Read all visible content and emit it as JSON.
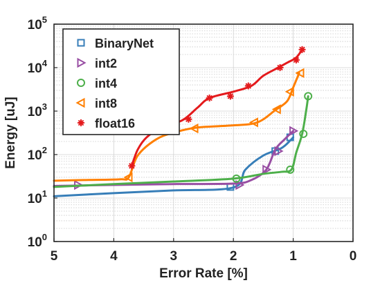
{
  "chart_data": {
    "type": "line",
    "title": "",
    "xlabel": "Error Rate [%]",
    "ylabel": "Energy [uJ]",
    "x_reversed": true,
    "xlim": [
      5,
      0
    ],
    "ylim": [
      1,
      100000
    ],
    "yscale": "log",
    "grid": true,
    "legend_position": "top-left",
    "x_ticks": [
      {
        "value": 5,
        "label": "5"
      },
      {
        "value": 4,
        "label": "4"
      },
      {
        "value": 3,
        "label": "3"
      },
      {
        "value": 2,
        "label": "2"
      },
      {
        "value": 1,
        "label": "1"
      },
      {
        "value": 0,
        "label": "0"
      }
    ],
    "y_ticks": [
      {
        "value": 1,
        "base": "10",
        "exp": "0"
      },
      {
        "value": 10,
        "base": "10",
        "exp": "1"
      },
      {
        "value": 100,
        "base": "10",
        "exp": "2"
      },
      {
        "value": 1000,
        "base": "10",
        "exp": "3"
      },
      {
        "value": 10000,
        "base": "10",
        "exp": "4"
      },
      {
        "value": 100000,
        "base": "10",
        "exp": "5"
      }
    ],
    "series": [
      {
        "name": "BinaryNet",
        "color": "#377eb8",
        "marker": "square",
        "line": [
          [
            5.0,
            11
          ],
          [
            4.0,
            13
          ],
          [
            3.0,
            15
          ],
          [
            2.0,
            17.5
          ],
          [
            1.8,
            45
          ],
          [
            1.5,
            95
          ],
          [
            1.2,
            140
          ],
          [
            1.05,
            210
          ],
          [
            1.0,
            250
          ]
        ],
        "points": [
          [
            2.05,
            18
          ],
          [
            1.3,
            120
          ],
          [
            1.05,
            250
          ]
        ]
      },
      {
        "name": "int2",
        "color": "#984ea3",
        "marker": "triangle-right",
        "line": [
          [
            5.0,
            19
          ],
          [
            4.0,
            20
          ],
          [
            3.0,
            21
          ],
          [
            2.0,
            21.5
          ],
          [
            1.7,
            26
          ],
          [
            1.45,
            45
          ],
          [
            1.3,
            130
          ],
          [
            1.15,
            220
          ],
          [
            1.0,
            350
          ]
        ],
        "points": [
          [
            4.6,
            20
          ],
          [
            1.9,
            20
          ],
          [
            1.45,
            45
          ],
          [
            1.25,
            120
          ],
          [
            1.0,
            350
          ]
        ]
      },
      {
        "name": "int4",
        "color": "#4daf4a",
        "marker": "circle",
        "line": [
          [
            5.0,
            18
          ],
          [
            4.0,
            21
          ],
          [
            3.0,
            24
          ],
          [
            2.0,
            28
          ],
          [
            1.5,
            36
          ],
          [
            1.2,
            40
          ],
          [
            1.03,
            45
          ],
          [
            0.95,
            110
          ],
          [
            0.85,
            300
          ],
          [
            0.78,
            1100
          ],
          [
            0.75,
            2200
          ]
        ],
        "points": [
          [
            1.95,
            28
          ],
          [
            1.05,
            45
          ],
          [
            0.83,
            300
          ],
          [
            0.75,
            2200
          ]
        ]
      },
      {
        "name": "int8",
        "color": "#ff7f00",
        "marker": "triangle-left",
        "line": [
          [
            5.0,
            25
          ],
          [
            4.5,
            26
          ],
          [
            3.9,
            27
          ],
          [
            3.75,
            30
          ],
          [
            3.6,
            95
          ],
          [
            3.3,
            220
          ],
          [
            3.0,
            320
          ],
          [
            2.6,
            420
          ],
          [
            2.0,
            470
          ],
          [
            1.6,
            550
          ],
          [
            1.3,
            1050
          ],
          [
            1.1,
            1700
          ],
          [
            1.0,
            3500
          ],
          [
            0.9,
            7500
          ]
        ],
        "points": [
          [
            3.75,
            30
          ],
          [
            2.65,
            400
          ],
          [
            1.65,
            550
          ],
          [
            1.27,
            1100
          ],
          [
            1.05,
            2800
          ],
          [
            0.88,
            7500
          ]
        ]
      },
      {
        "name": "float16",
        "color": "#e41a1c",
        "marker": "asterisk",
        "line": [
          [
            3.7,
            55
          ],
          [
            3.6,
            130
          ],
          [
            3.45,
            250
          ],
          [
            3.2,
            420
          ],
          [
            2.85,
            620
          ],
          [
            2.6,
            1200
          ],
          [
            2.4,
            2000
          ],
          [
            2.0,
            2800
          ],
          [
            1.7,
            3800
          ],
          [
            1.5,
            6500
          ],
          [
            1.25,
            10000
          ],
          [
            1.1,
            13000
          ],
          [
            0.95,
            17000
          ],
          [
            0.85,
            26000
          ]
        ],
        "points": [
          [
            3.7,
            55
          ],
          [
            2.75,
            650
          ],
          [
            2.4,
            2000
          ],
          [
            2.05,
            2200
          ],
          [
            1.75,
            3800
          ],
          [
            1.22,
            10000
          ],
          [
            0.95,
            15000
          ],
          [
            0.85,
            26000
          ]
        ]
      }
    ]
  }
}
